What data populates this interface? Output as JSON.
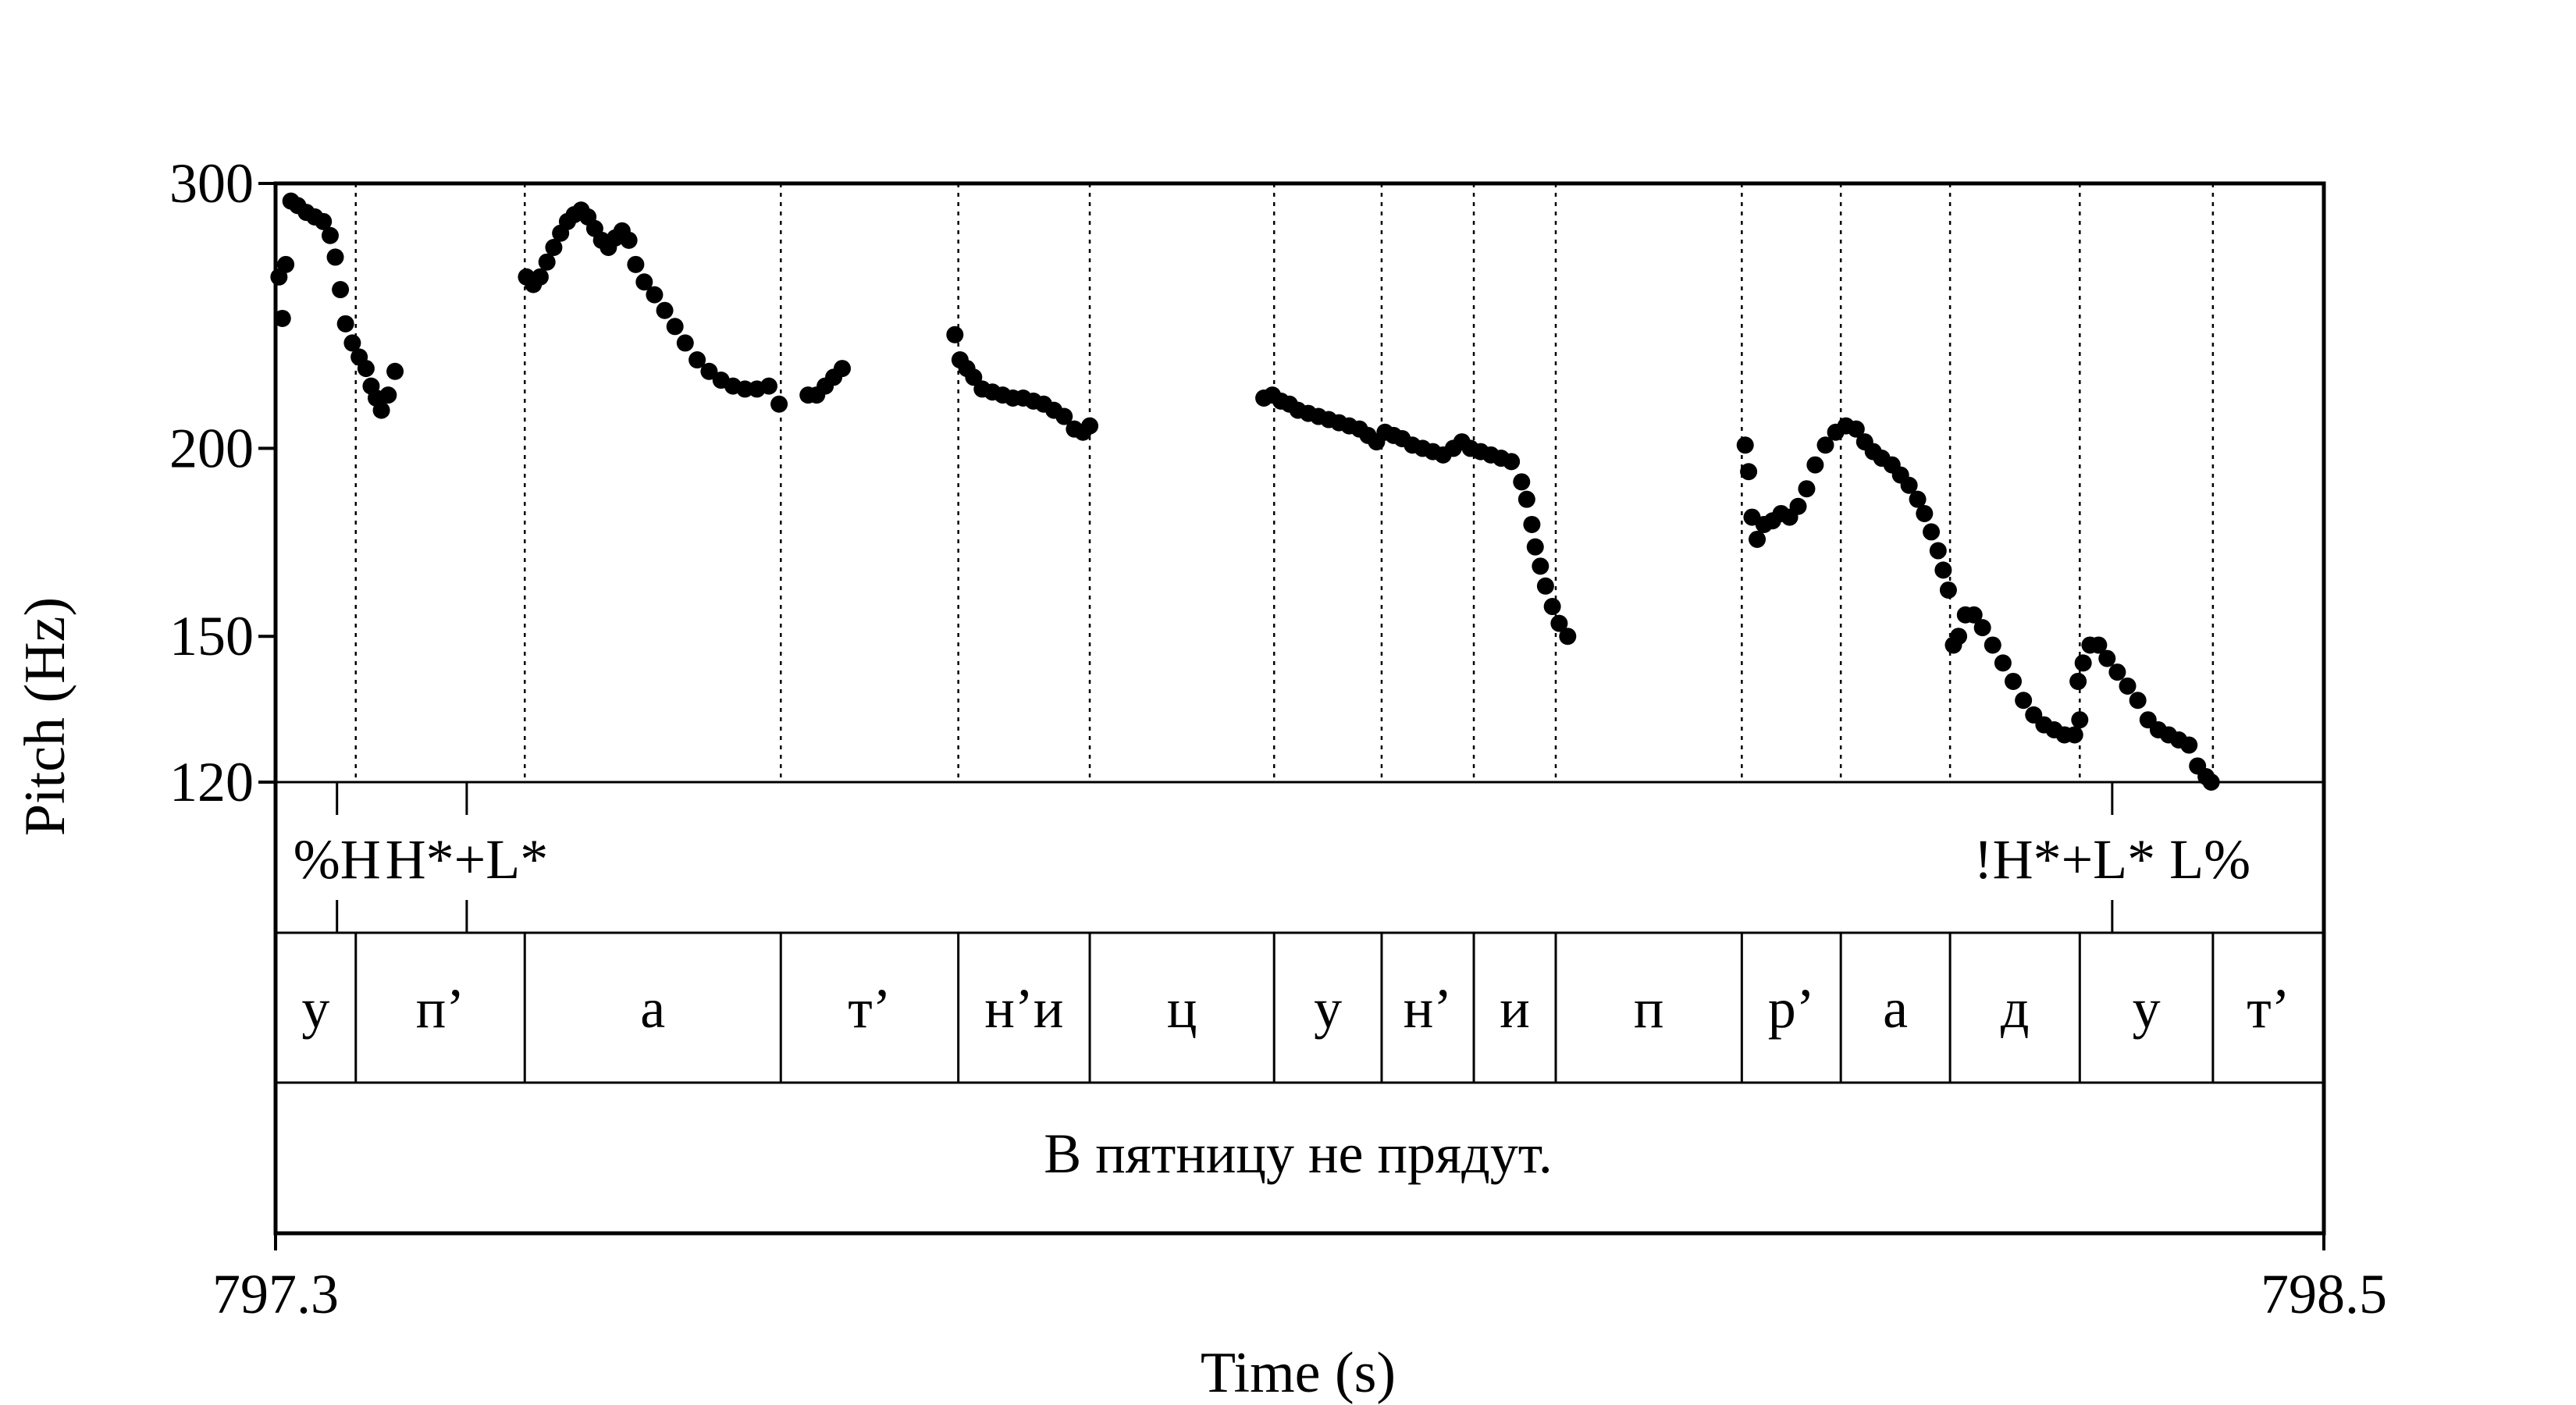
{
  "chart_data": {
    "type": "scatter",
    "title": "",
    "xlabel": "Time (s)",
    "ylabel": "Pitch (Hz)",
    "xlim": [
      797.3,
      798.5
    ],
    "ylim": [
      120,
      300
    ],
    "y_scale": "log",
    "x_ticks": [
      "797.3",
      "798.5"
    ],
    "y_ticks": [
      "120",
      "150",
      "200",
      "300"
    ],
    "y_tick_values": [
      120,
      150,
      200,
      300
    ],
    "grid": false,
    "marker_color": "#000000",
    "segment_boundaries": [
      797.347,
      797.446,
      797.596,
      797.7,
      797.777,
      797.885,
      797.948,
      798.002,
      798.05,
      798.159,
      798.217,
      798.281,
      798.357,
      798.435
    ],
    "tones": [
      {
        "label": "%H",
        "time": 797.336
      },
      {
        "label": "H*+L*",
        "time": 797.412
      },
      {
        "label": "!H*+L* L%",
        "time": 798.376
      }
    ],
    "segments": [
      {
        "label": "у",
        "start": 797.3,
        "end": 797.347
      },
      {
        "label": "п’",
        "start": 797.347,
        "end": 797.446
      },
      {
        "label": "а",
        "start": 797.446,
        "end": 797.596
      },
      {
        "label": "т’",
        "start": 797.596,
        "end": 797.7
      },
      {
        "label": "н’и",
        "start": 797.7,
        "end": 797.777
      },
      {
        "label": "ц",
        "start": 797.777,
        "end": 797.885
      },
      {
        "label": "у",
        "start": 797.885,
        "end": 797.948
      },
      {
        "label": "н’",
        "start": 797.948,
        "end": 798.002
      },
      {
        "label": "и",
        "start": 798.002,
        "end": 798.05
      },
      {
        "label": "п",
        "start": 798.05,
        "end": 798.159
      },
      {
        "label": "р’",
        "start": 798.159,
        "end": 798.217
      },
      {
        "label": "а",
        "start": 798.217,
        "end": 798.281
      },
      {
        "label": "д",
        "start": 798.281,
        "end": 798.357
      },
      {
        "label": "у",
        "start": 798.357,
        "end": 798.435
      },
      {
        "label": "т’",
        "start": 798.435,
        "end": 798.5
      }
    ],
    "sentence": "В пятницу не прядут.",
    "series": [
      {
        "points": [
          [
            797.302,
            260
          ],
          [
            797.304,
            244
          ],
          [
            797.306,
            265
          ],
          [
            797.309,
            292
          ],
          [
            797.313,
            290
          ],
          [
            797.318,
            287
          ],
          [
            797.323,
            285
          ],
          [
            797.328,
            283
          ],
          [
            797.332,
            277
          ],
          [
            797.335,
            268
          ],
          [
            797.338,
            255
          ],
          [
            797.341,
            242
          ],
          [
            797.345,
            235
          ],
          [
            797.349,
            230
          ],
          [
            797.353,
            226
          ],
          [
            797.356,
            220
          ],
          [
            797.359,
            216
          ],
          [
            797.362,
            212
          ],
          [
            797.366,
            217
          ],
          [
            797.37,
            225
          ],
          [
            797.447,
            260
          ],
          [
            797.451,
            257
          ],
          [
            797.455,
            260
          ],
          [
            797.459,
            266
          ],
          [
            797.463,
            272
          ],
          [
            797.467,
            278
          ],
          [
            797.471,
            283
          ],
          [
            797.475,
            286
          ],
          [
            797.479,
            288
          ],
          [
            797.483,
            285
          ],
          [
            797.487,
            280
          ],
          [
            797.491,
            275
          ],
          [
            797.495,
            272
          ],
          [
            797.499,
            276
          ],
          [
            797.503,
            279
          ],
          [
            797.507,
            275
          ],
          [
            797.511,
            265
          ],
          [
            797.516,
            258
          ],
          [
            797.522,
            253
          ],
          [
            797.528,
            247
          ],
          [
            797.534,
            241
          ],
          [
            797.54,
            235
          ],
          [
            797.547,
            229
          ],
          [
            797.554,
            225
          ],
          [
            797.561,
            222
          ],
          [
            797.568,
            220
          ],
          [
            797.575,
            219
          ],
          [
            797.582,
            219
          ],
          [
            797.589,
            220
          ],
          [
            797.595,
            214
          ],
          [
            797.612,
            217
          ],
          [
            797.617,
            217
          ],
          [
            797.622,
            220
          ],
          [
            797.627,
            223
          ],
          [
            797.632,
            226
          ],
          [
            797.698,
            238
          ],
          [
            797.701,
            229
          ],
          [
            797.705,
            226
          ],
          [
            797.709,
            223
          ],
          [
            797.714,
            219
          ],
          [
            797.72,
            218
          ],
          [
            797.726,
            217
          ],
          [
            797.732,
            216
          ],
          [
            797.738,
            216
          ],
          [
            797.744,
            215
          ],
          [
            797.75,
            214
          ],
          [
            797.756,
            212
          ],
          [
            797.762,
            210
          ],
          [
            797.768,
            206
          ],
          [
            797.773,
            205
          ],
          [
            797.777,
            207
          ],
          [
            797.879,
            216
          ],
          [
            797.884,
            217
          ],
          [
            797.889,
            215
          ],
          [
            797.894,
            214
          ],
          [
            797.899,
            212
          ],
          [
            797.905,
            211
          ],
          [
            797.911,
            210
          ],
          [
            797.917,
            209
          ],
          [
            797.923,
            208
          ],
          [
            797.929,
            207
          ],
          [
            797.935,
            206
          ],
          [
            797.94,
            204
          ],
          [
            797.945,
            202
          ],
          [
            797.95,
            205
          ],
          [
            797.955,
            204
          ],
          [
            797.96,
            203
          ],
          [
            797.966,
            201
          ],
          [
            797.972,
            200
          ],
          [
            797.978,
            199
          ],
          [
            797.984,
            198
          ],
          [
            797.99,
            200
          ],
          [
            797.995,
            202
          ],
          [
            798.0,
            200
          ],
          [
            798.006,
            199
          ],
          [
            798.012,
            198
          ],
          [
            798.018,
            197
          ],
          [
            798.024,
            196
          ],
          [
            798.03,
            190
          ],
          [
            798.033,
            185
          ],
          [
            798.036,
            178
          ],
          [
            798.038,
            172
          ],
          [
            798.041,
            167
          ],
          [
            798.044,
            162
          ],
          [
            798.048,
            157
          ],
          [
            798.052,
            153
          ],
          [
            798.057,
            150
          ],
          [
            798.161,
            201
          ],
          [
            798.163,
            193
          ],
          [
            798.165,
            180
          ],
          [
            798.168,
            174
          ],
          [
            798.172,
            178
          ],
          [
            798.177,
            179
          ],
          [
            798.182,
            181
          ],
          [
            798.187,
            180
          ],
          [
            798.192,
            183
          ],
          [
            798.197,
            188
          ],
          [
            798.202,
            195
          ],
          [
            798.208,
            201
          ],
          [
            798.214,
            205
          ],
          [
            798.22,
            207
          ],
          [
            798.226,
            206
          ],
          [
            798.231,
            202
          ],
          [
            798.236,
            199
          ],
          [
            798.241,
            197
          ],
          [
            798.247,
            195
          ],
          [
            798.252,
            192
          ],
          [
            798.257,
            189
          ],
          [
            798.262,
            185
          ],
          [
            798.266,
            181
          ],
          [
            798.27,
            176
          ],
          [
            798.274,
            171
          ],
          [
            798.277,
            166
          ],
          [
            798.28,
            161
          ],
          [
            798.283,
            148
          ],
          [
            798.286,
            150
          ],
          [
            798.29,
            155
          ],
          [
            798.295,
            155
          ],
          [
            798.3,
            152
          ],
          [
            798.306,
            148
          ],
          [
            798.312,
            144
          ],
          [
            798.318,
            140
          ],
          [
            798.324,
            136
          ],
          [
            798.33,
            133
          ],
          [
            798.336,
            131
          ],
          [
            798.342,
            130
          ],
          [
            798.348,
            129
          ],
          [
            798.354,
            129
          ],
          [
            798.357,
            132
          ],
          [
            798.356,
            140
          ],
          [
            798.359,
            144
          ],
          [
            798.363,
            148
          ],
          [
            798.368,
            148
          ],
          [
            798.373,
            145
          ],
          [
            798.379,
            142
          ],
          [
            798.385,
            139
          ],
          [
            798.391,
            136
          ],
          [
            798.397,
            132
          ],
          [
            798.403,
            130
          ],
          [
            798.409,
            129
          ],
          [
            798.415,
            128
          ],
          [
            798.421,
            127
          ],
          [
            798.426,
            123
          ],
          [
            798.431,
            121
          ],
          [
            798.434,
            120
          ]
        ]
      }
    ]
  }
}
